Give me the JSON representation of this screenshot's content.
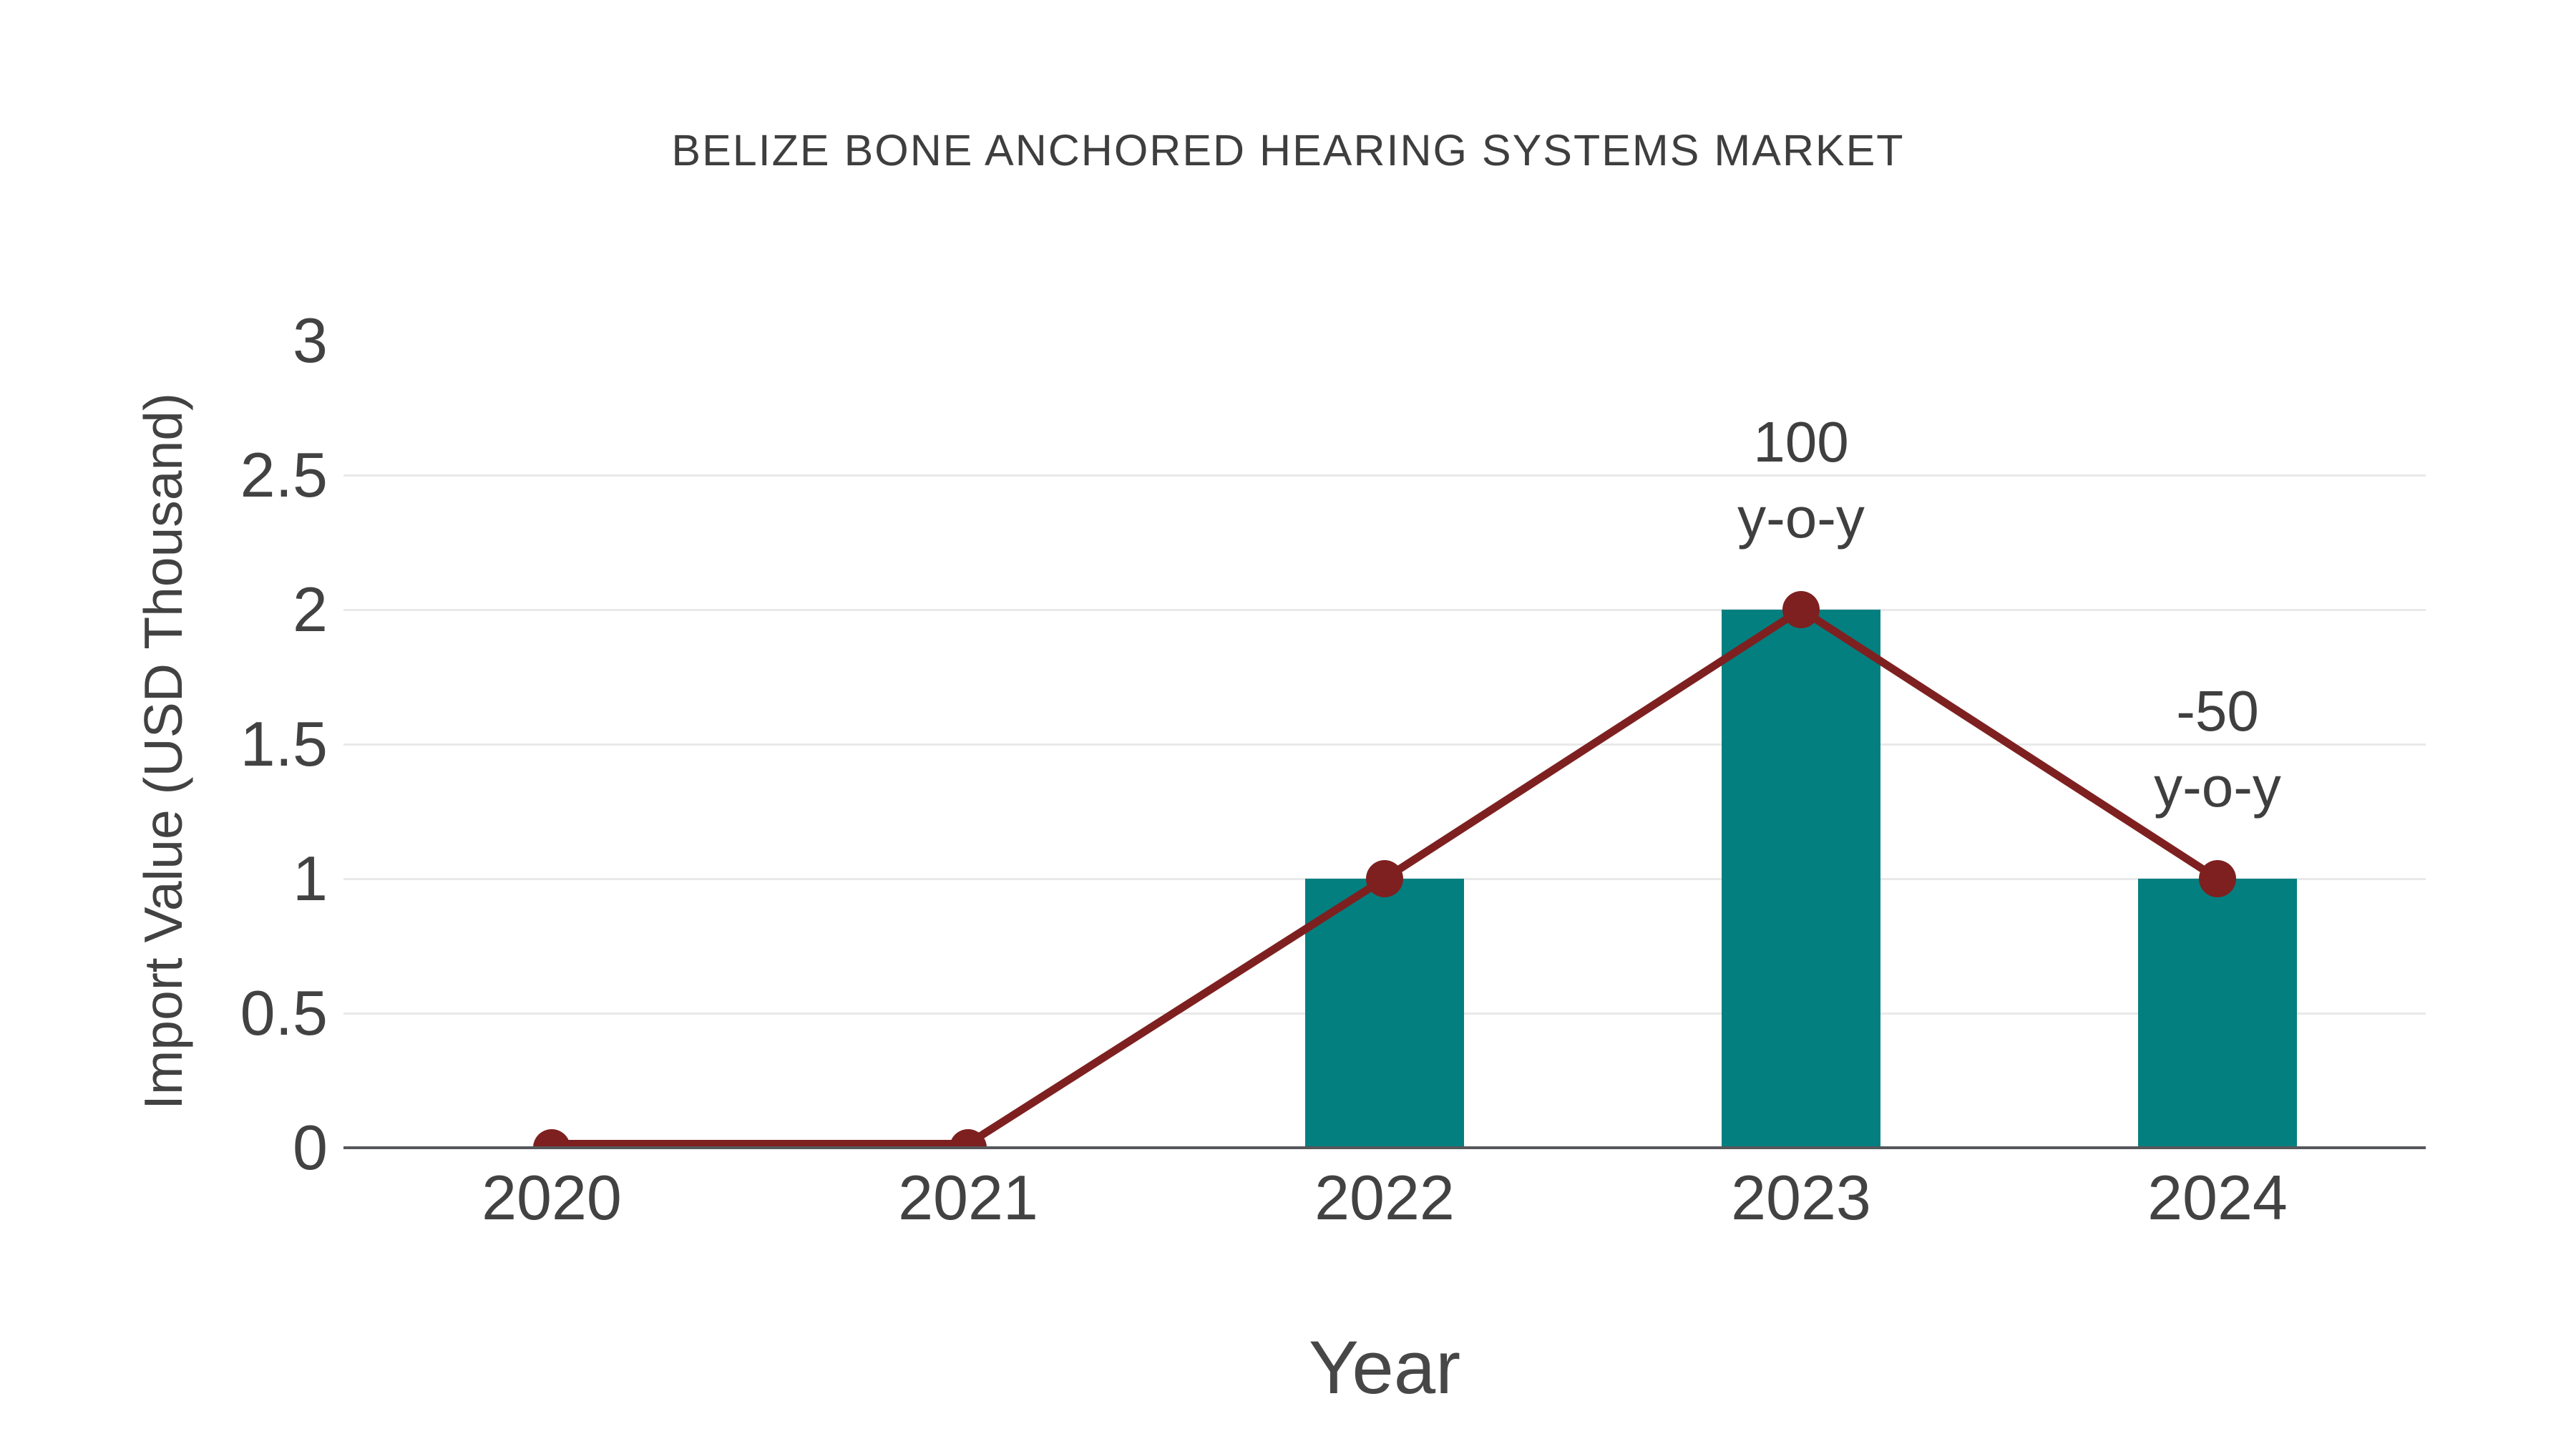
{
  "title": "BELIZE BONE ANCHORED HEARING SYSTEMS MARKET",
  "chart_data": {
    "type": "combo",
    "categories": [
      "2020",
      "2021",
      "2022",
      "2023",
      "2024"
    ],
    "series": [
      {
        "name": "import-value-bars",
        "type": "bar",
        "values": [
          0,
          0,
          1,
          2,
          1
        ],
        "color": "#047f7f"
      },
      {
        "name": "import-value-line",
        "type": "line",
        "values": [
          0,
          0,
          1,
          2,
          1
        ],
        "color": "#7e2020",
        "marker": "circle"
      }
    ],
    "annotations": [
      {
        "category": "2023",
        "lines": [
          "100",
          "y-o-y"
        ]
      },
      {
        "category": "2024",
        "lines": [
          "-50",
          "y-o-y"
        ]
      }
    ],
    "title": "BELIZE BONE ANCHORED HEARING SYSTEMS MARKET",
    "xlabel": "Year",
    "ylabel": "Import Value (USD Thousand)",
    "ytick_labels": [
      "0",
      "0.5",
      "1",
      "1.5",
      "2",
      "2.5",
      "3"
    ],
    "yticks": [
      0,
      0.5,
      1,
      1.5,
      2,
      2.5,
      3
    ],
    "ylim": [
      0,
      3
    ],
    "grid": true,
    "gridline_values": [
      0.5,
      1,
      1.5,
      2,
      2.5
    ],
    "legend_position": "none"
  },
  "colors": {
    "bar": "#047f7f",
    "line": "#7e2020",
    "axis": "#56575b",
    "gridline": "#e9e9ea",
    "text": "#3f3f3f",
    "background": "#ffffff"
  }
}
